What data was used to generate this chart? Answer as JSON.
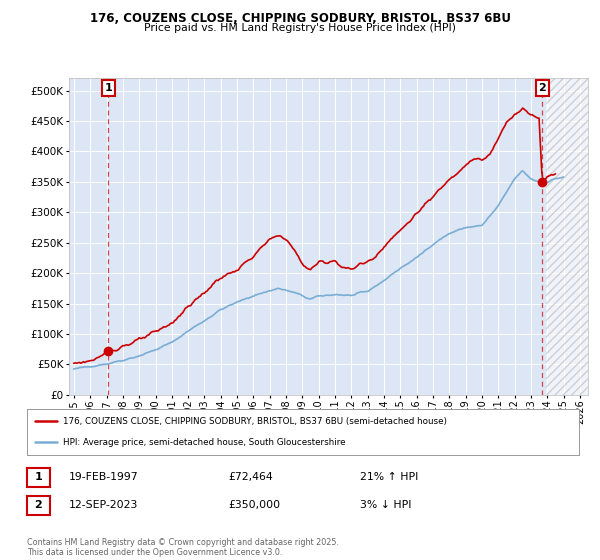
{
  "title1": "176, COUZENS CLOSE, CHIPPING SODBURY, BRISTOL, BS37 6BU",
  "title2": "Price paid vs. HM Land Registry's House Price Index (HPI)",
  "ylim": [
    0,
    520000
  ],
  "yticks": [
    0,
    50000,
    100000,
    150000,
    200000,
    250000,
    300000,
    350000,
    400000,
    450000,
    500000
  ],
  "xlim_start": 1994.7,
  "xlim_end": 2026.5,
  "xticks": [
    1995,
    1996,
    1997,
    1998,
    1999,
    2000,
    2001,
    2002,
    2003,
    2004,
    2005,
    2006,
    2007,
    2008,
    2009,
    2010,
    2011,
    2012,
    2013,
    2014,
    2015,
    2016,
    2017,
    2018,
    2019,
    2020,
    2021,
    2022,
    2023,
    2024,
    2025,
    2026
  ],
  "background_color": "#ffffff",
  "plot_bg_color": "#dce6f5",
  "grid_color": "#ffffff",
  "red_color": "#cc0000",
  "blue_color": "#7aadd4",
  "marker1_x": 1997.12,
  "marker1_y": 72464,
  "marker2_x": 2023.7,
  "marker2_y": 350000,
  "hatch_start": 2023.9,
  "legend_label_red": "176, COUZENS CLOSE, CHIPPING SODBURY, BRISTOL, BS37 6BU (semi-detached house)",
  "legend_label_blue": "HPI: Average price, semi-detached house, South Gloucestershire",
  "table_row1": [
    "1",
    "19-FEB-1997",
    "£72,464",
    "21% ↑ HPI"
  ],
  "table_row2": [
    "2",
    "12-SEP-2023",
    "£350,000",
    "3% ↓ HPI"
  ],
  "footer": "Contains HM Land Registry data © Crown copyright and database right 2025.\nThis data is licensed under the Open Government Licence v3.0."
}
